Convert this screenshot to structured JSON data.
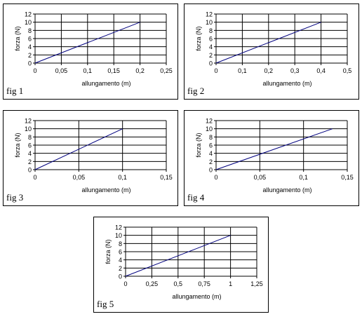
{
  "chart_data": [
    {
      "type": "line",
      "label": "fig 1",
      "xlabel": "allungamento (m)",
      "ylabel": "forza (N)",
      "xlim": [
        0,
        0.25
      ],
      "ylim": [
        0,
        12
      ],
      "x_ticks": [
        0,
        0.05,
        0.1,
        0.15,
        0.2,
        0.25
      ],
      "x_tick_labels": [
        "0",
        "0,05",
        "0,1",
        "0,15",
        "0,2",
        "0,25"
      ],
      "y_ticks": [
        0,
        2,
        4,
        6,
        8,
        10,
        12
      ],
      "y_tick_labels": [
        "0",
        "2",
        "4",
        "6",
        "8",
        "10",
        "12"
      ],
      "grid": true,
      "series": [
        {
          "x": [
            0,
            0.2
          ],
          "y": [
            0,
            10
          ],
          "color": "#00007f"
        }
      ]
    },
    {
      "type": "line",
      "label": "fig 2",
      "xlabel": "allungamento (m)",
      "ylabel": "forza (N)",
      "xlim": [
        0,
        0.5
      ],
      "ylim": [
        0,
        12
      ],
      "x_ticks": [
        0,
        0.1,
        0.2,
        0.3,
        0.4,
        0.5
      ],
      "x_tick_labels": [
        "0",
        "0,1",
        "0,2",
        "0,3",
        "0,4",
        "0,5"
      ],
      "y_ticks": [
        0,
        2,
        4,
        6,
        8,
        10,
        12
      ],
      "y_tick_labels": [
        "0",
        "2",
        "4",
        "6",
        "8",
        "10",
        "12"
      ],
      "grid": true,
      "series": [
        {
          "x": [
            0,
            0.4
          ],
          "y": [
            0,
            10
          ],
          "color": "#00007f"
        }
      ]
    },
    {
      "type": "line",
      "label": "fig 3",
      "xlabel": "allungamento (m)",
      "ylabel": "forza (N)",
      "xlim": [
        0,
        0.15
      ],
      "ylim": [
        0,
        12
      ],
      "x_ticks": [
        0,
        0.05,
        0.1,
        0.15
      ],
      "x_tick_labels": [
        "0",
        "0,05",
        "0,1",
        "0,15"
      ],
      "y_ticks": [
        0,
        2,
        4,
        6,
        8,
        10,
        12
      ],
      "y_tick_labels": [
        "0",
        "2",
        "4",
        "6",
        "8",
        "10",
        "12"
      ],
      "grid": true,
      "series": [
        {
          "x": [
            0,
            0.1
          ],
          "y": [
            0,
            10
          ],
          "color": "#00007f"
        }
      ]
    },
    {
      "type": "line",
      "label": "fig 4",
      "xlabel": "allungamento (m)",
      "ylabel": "forza (N)",
      "xlim": [
        0,
        0.15
      ],
      "ylim": [
        0,
        12
      ],
      "x_ticks": [
        0,
        0.05,
        0.1,
        0.15
      ],
      "x_tick_labels": [
        "0",
        "0,05",
        "0,1",
        "0,15"
      ],
      "y_ticks": [
        0,
        2,
        4,
        6,
        8,
        10,
        12
      ],
      "y_tick_labels": [
        "0",
        "2",
        "4",
        "6",
        "8",
        "10",
        "12"
      ],
      "grid": true,
      "series": [
        {
          "x": [
            0,
            0.133
          ],
          "y": [
            0,
            10
          ],
          "color": "#00007f"
        }
      ]
    },
    {
      "type": "line",
      "label": "fig 5",
      "xlabel": "allungamento (m)",
      "ylabel": "forza (N)",
      "xlim": [
        0,
        1.25
      ],
      "ylim": [
        0,
        12
      ],
      "x_ticks": [
        0,
        0.25,
        0.5,
        0.75,
        1,
        1.25
      ],
      "x_tick_labels": [
        "0",
        "0,25",
        "0,5",
        "0,75",
        "1",
        "1,25"
      ],
      "y_ticks": [
        0,
        2,
        4,
        6,
        8,
        10,
        12
      ],
      "y_tick_labels": [
        "0",
        "2",
        "4",
        "6",
        "8",
        "10",
        "12"
      ],
      "grid": true,
      "series": [
        {
          "x": [
            0,
            1
          ],
          "y": [
            0,
            10
          ],
          "color": "#00007f"
        }
      ]
    }
  ]
}
